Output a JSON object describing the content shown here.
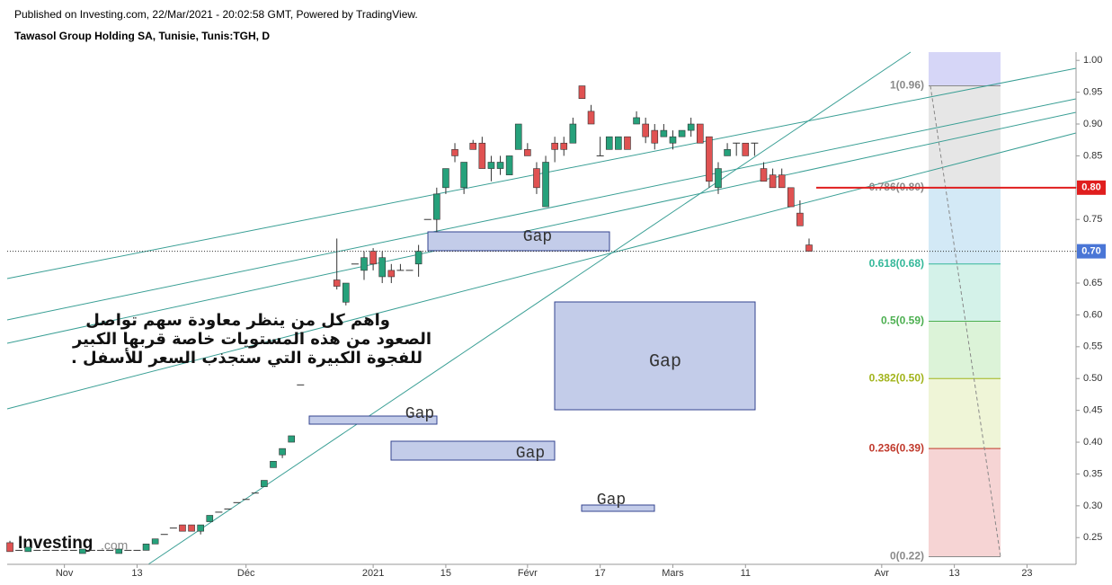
{
  "header": {
    "published": "Published on Investing.com, 22/Mar/2021 - 20:02:58 GMT, Powered by TradingView.",
    "symbol": "Tawasol Group Holding SA, Tunisie, Tunis:TGH, D"
  },
  "logo": {
    "name": "Investing",
    "suffix": ".com"
  },
  "note": [
    "واهم كل من ينظر معاودة سهم تواصل",
    "الصعود من هذه المستويات خاصة قربها الكبير",
    "للفجوة الكبيرة التي ستجذب السعر للأسفل ."
  ],
  "chart_data": {
    "type": "candlestick",
    "up_color": "#26a17b",
    "down_color": "#e05252",
    "open": [
      0.242,
      0.23,
      0.228,
      0.23,
      0.23,
      0.23,
      0.23,
      0.23,
      0.225,
      0.23,
      0.23,
      0.23,
      0.225,
      0.23,
      0.23,
      0.23,
      0.24,
      0.255,
      0.265,
      0.27,
      0.27,
      0.26,
      0.275,
      0.29,
      0.295,
      0.305,
      0.31,
      0.32,
      0.33,
      0.36,
      0.38,
      0.4,
      0.49,
      null,
      null,
      null,
      0.655,
      0.62,
      0.68,
      0.67,
      0.7,
      0.66,
      0.67,
      0.67,
      0.67,
      0.68,
      0.75,
      0.75,
      0.8,
      0.86,
      0.8,
      0.87,
      0.87,
      0.83,
      0.83,
      0.82,
      0.86,
      0.86,
      0.83,
      0.77,
      0.87,
      0.87,
      0.87,
      0.96,
      0.92,
      0.85,
      0.86,
      0.86,
      0.88,
      0.9,
      0.9,
      0.89,
      0.88,
      0.87,
      0.88,
      0.89,
      0.9,
      0.88,
      0.8,
      0.85,
      0.87,
      0.87,
      0.87,
      0.83,
      0.82,
      0.82,
      0.8,
      0.76,
      0.71
    ],
    "high": [
      0.245,
      0.23,
      0.235,
      0.23,
      0.23,
      0.23,
      0.23,
      0.23,
      0.232,
      0.23,
      0.23,
      0.23,
      0.232,
      0.23,
      0.23,
      0.24,
      0.248,
      0.255,
      0.265,
      0.27,
      0.27,
      0.27,
      0.285,
      0.29,
      0.295,
      0.305,
      0.31,
      0.32,
      0.34,
      0.37,
      0.39,
      0.41,
      0.49,
      null,
      null,
      null,
      0.72,
      0.65,
      0.68,
      0.7,
      0.705,
      0.7,
      0.68,
      0.68,
      0.67,
      0.71,
      0.75,
      0.8,
      0.83,
      0.87,
      0.84,
      0.875,
      0.88,
      0.85,
      0.85,
      0.85,
      0.9,
      0.87,
      0.84,
      0.85,
      0.88,
      0.88,
      0.91,
      0.96,
      0.93,
      0.88,
      0.88,
      0.88,
      0.88,
      0.92,
      0.91,
      0.9,
      0.9,
      0.89,
      0.89,
      0.91,
      0.9,
      0.88,
      0.84,
      0.87,
      0.87,
      0.87,
      0.87,
      0.84,
      0.83,
      0.83,
      0.8,
      0.78,
      0.72
    ],
    "low": [
      0.228,
      0.23,
      0.228,
      0.23,
      0.23,
      0.23,
      0.23,
      0.23,
      0.225,
      0.23,
      0.23,
      0.23,
      0.225,
      0.23,
      0.23,
      0.23,
      0.24,
      0.255,
      0.265,
      0.26,
      0.26,
      0.255,
      0.275,
      0.29,
      0.295,
      0.305,
      0.31,
      0.32,
      0.33,
      0.36,
      0.375,
      0.4,
      0.49,
      null,
      null,
      null,
      0.64,
      0.615,
      0.68,
      0.655,
      0.67,
      0.65,
      0.65,
      0.67,
      0.67,
      0.66,
      0.75,
      0.73,
      0.79,
      0.84,
      0.79,
      0.86,
      0.83,
      0.81,
      0.82,
      0.82,
      0.86,
      0.85,
      0.79,
      0.77,
      0.84,
      0.85,
      0.87,
      0.94,
      0.9,
      0.85,
      0.86,
      0.86,
      0.86,
      0.9,
      0.87,
      0.86,
      0.88,
      0.86,
      0.88,
      0.88,
      0.87,
      0.8,
      0.79,
      0.85,
      0.85,
      0.85,
      0.85,
      0.81,
      0.8,
      0.8,
      0.77,
      0.74,
      0.7
    ],
    "close": [
      0.228,
      0.23,
      0.235,
      0.23,
      0.23,
      0.23,
      0.23,
      0.23,
      0.232,
      0.23,
      0.23,
      0.23,
      0.232,
      0.23,
      0.23,
      0.24,
      0.248,
      0.255,
      0.265,
      0.26,
      0.26,
      0.27,
      0.285,
      0.29,
      0.295,
      0.305,
      0.31,
      0.32,
      0.34,
      0.37,
      0.39,
      0.41,
      0.49,
      null,
      null,
      null,
      0.645,
      0.65,
      0.68,
      0.69,
      0.68,
      0.69,
      0.66,
      0.67,
      0.67,
      0.7,
      0.75,
      0.79,
      0.83,
      0.85,
      0.84,
      0.86,
      0.83,
      0.84,
      0.84,
      0.85,
      0.9,
      0.85,
      0.8,
      0.84,
      0.86,
      0.86,
      0.9,
      0.94,
      0.9,
      0.85,
      0.88,
      0.88,
      0.86,
      0.91,
      0.88,
      0.87,
      0.89,
      0.88,
      0.89,
      0.9,
      0.87,
      0.81,
      0.83,
      0.86,
      0.87,
      0.85,
      0.87,
      0.81,
      0.8,
      0.8,
      0.77,
      0.74,
      0.7
    ],
    "xlim": [
      -0.3,
      117.4
    ],
    "xticks": [
      {
        "value": 6,
        "label": "Nov"
      },
      {
        "value": 14,
        "label": "13"
      },
      {
        "value": 26,
        "label": "Déc"
      },
      {
        "value": 40,
        "label": "2021"
      },
      {
        "value": 48,
        "label": "15"
      },
      {
        "value": 57,
        "label": "Févr"
      },
      {
        "value": 65,
        "label": "17"
      },
      {
        "value": 73,
        "label": "Mars"
      },
      {
        "value": 81,
        "label": "11"
      },
      {
        "value": 96,
        "label": "Avr"
      },
      {
        "value": 104,
        "label": "13"
      },
      {
        "value": 112,
        "label": "23"
      }
    ],
    "ylim": [
      0.208,
      1.013
    ],
    "yticks": [
      {
        "value": 1,
        "label": "1.00"
      },
      {
        "value": 0.95,
        "label": "0.95"
      },
      {
        "value": 0.9,
        "label": "0.90"
      },
      {
        "value": 0.85,
        "label": "0.85"
      },
      {
        "value": 0.8,
        "label": "0.80"
      },
      {
        "value": 0.75,
        "label": "0.75"
      },
      {
        "value": 0.7,
        "label": "0.70"
      },
      {
        "value": 0.65,
        "label": "0.65"
      },
      {
        "value": 0.6,
        "label": "0.60"
      },
      {
        "value": 0.55,
        "label": "0.55"
      },
      {
        "value": 0.5,
        "label": "0.50"
      },
      {
        "value": 0.45,
        "label": "0.45"
      },
      {
        "value": 0.4,
        "label": "0.40"
      },
      {
        "value": 0.35,
        "label": "0.35"
      },
      {
        "value": 0.3,
        "label": "0.30"
      },
      {
        "value": 0.25,
        "label": "0.25"
      }
    ],
    "price_line": {
      "value": 0.8,
      "label": "0.80",
      "color": "#e01e1e"
    },
    "last_price": {
      "value": 0.7,
      "label": "0.70",
      "color": "#4a76d6"
    },
    "fibonacci": {
      "top_fill": "#d6d6f7",
      "levels": [
        {
          "label": "1(0.96)",
          "value": 0.96,
          "color": "#8a8a8a",
          "fill": "#e6e6e6"
        },
        {
          "label": "0.786(0.80)",
          "value": 0.8,
          "color": "#8a8a8a",
          "fill": "#d3e9f6"
        },
        {
          "label": "0.618(0.68)",
          "value": 0.68,
          "color": "#34b89a",
          "fill": "#d4f2e9"
        },
        {
          "label": "0.5(0.59)",
          "value": 0.59,
          "color": "#4caf50",
          "fill": "#dcf3d8"
        },
        {
          "label": "0.382(0.50)",
          "value": 0.5,
          "color": "#a2b41c",
          "fill": "#eff5d7"
        },
        {
          "label": "0.236(0.39)",
          "value": 0.39,
          "color": "#c0392b",
          "fill": "#f6d4d4"
        },
        {
          "label": "0(0.22)",
          "value": 0.22,
          "color": "#8a8a8a"
        }
      ]
    },
    "annotations": [
      "Gap",
      "Gap",
      "Gap",
      "Gap",
      "Gap"
    ]
  }
}
